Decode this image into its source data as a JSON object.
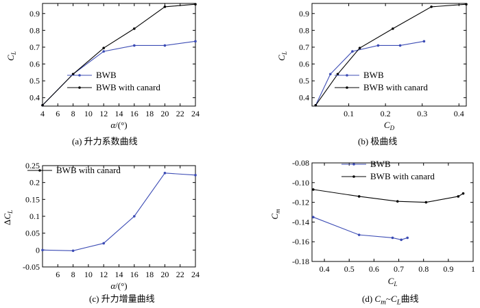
{
  "colors": {
    "bwb": "#3b4bb4",
    "canard": "#000000",
    "axis": "#000000"
  },
  "chart_data": [
    {
      "id": "a",
      "type": "line",
      "caption": "(a)  升力系数曲线",
      "xlabel": "α/(°)",
      "ylabel": "C_L",
      "xlim": [
        4,
        24
      ],
      "ylim": [
        0.35,
        0.96
      ],
      "xticks": [
        4,
        6,
        8,
        10,
        12,
        14,
        16,
        18,
        20,
        22,
        24
      ],
      "xtick_labels": [
        "4",
        "6",
        "8",
        "10",
        "12",
        "14",
        "16",
        "18",
        "20",
        "22",
        "24"
      ],
      "yticks": [
        0.4,
        0.5,
        0.6,
        0.7,
        0.8,
        0.9
      ],
      "ytick_labels": [
        "0.4",
        "0.5",
        "0.6",
        "0.7",
        "0.8",
        "0.9"
      ],
      "legend_position": "lower-right",
      "series": [
        {
          "name": "BWB",
          "color_key": "bwb",
          "points": [
            [
              4,
              0.355
            ],
            [
              8,
              0.54
            ],
            [
              12,
              0.675
            ],
            [
              16,
              0.71
            ],
            [
              20,
              0.71
            ],
            [
              24,
              0.735
            ]
          ]
        },
        {
          "name": "BWB with canard",
          "color_key": "canard",
          "points": [
            [
              4,
              0.355
            ],
            [
              8,
              0.54
            ],
            [
              12,
              0.695
            ],
            [
              16,
              0.81
            ],
            [
              20,
              0.94
            ],
            [
              24,
              0.955
            ]
          ]
        }
      ]
    },
    {
      "id": "b",
      "type": "line",
      "caption": "(b)  极曲线",
      "xlabel": "C_D",
      "ylabel": "C_L",
      "xlim": [
        0.0,
        0.42
      ],
      "ylim": [
        0.35,
        0.96
      ],
      "xticks": [
        0.1,
        0.2,
        0.3,
        0.4
      ],
      "xtick_labels": [
        "0.1",
        "0.2",
        "0.3",
        "0.4"
      ],
      "yticks": [
        0.4,
        0.5,
        0.6,
        0.7,
        0.8,
        0.9
      ],
      "ytick_labels": [
        "0.4",
        "0.5",
        "0.6",
        "0.7",
        "0.8",
        "0.9"
      ],
      "legend_position": "lower-right",
      "series": [
        {
          "name": "BWB",
          "color_key": "bwb",
          "points": [
            [
              0.01,
              0.355
            ],
            [
              0.05,
              0.54
            ],
            [
              0.11,
              0.675
            ],
            [
              0.18,
              0.71
            ],
            [
              0.24,
              0.71
            ],
            [
              0.305,
              0.735
            ]
          ]
        },
        {
          "name": "BWB with canard",
          "color_key": "canard",
          "points": [
            [
              0.01,
              0.355
            ],
            [
              0.07,
              0.54
            ],
            [
              0.13,
              0.695
            ],
            [
              0.22,
              0.81
            ],
            [
              0.325,
              0.94
            ],
            [
              0.42,
              0.955
            ]
          ]
        }
      ]
    },
    {
      "id": "c",
      "type": "line",
      "caption": "(c)  升力增量曲线",
      "xlabel": "α/(°)",
      "ylabel": "ΔC_L",
      "xlim": [
        4,
        24
      ],
      "ylim": [
        -0.05,
        0.25
      ],
      "xticks": [
        6,
        8,
        10,
        12,
        14,
        16,
        18,
        20,
        22,
        24
      ],
      "xtick_labels": [
        "6",
        "8",
        "10",
        "12",
        "14",
        "16",
        "18",
        "20",
        "22",
        "24"
      ],
      "yticks": [
        -0.05,
        0,
        0.05,
        0.1,
        0.15,
        0.2,
        0.25
      ],
      "ytick_labels": [
        "-0.05",
        "0",
        "0.05",
        "0.1",
        "0.15",
        "0.2",
        "0.25"
      ],
      "legend_position": "top-left",
      "legend_marker_color_key": "canard",
      "series": [
        {
          "name": "BWB with canard",
          "color_key": "bwb",
          "points": [
            [
              4,
              0.0
            ],
            [
              8,
              -0.002
            ],
            [
              12,
              0.02
            ],
            [
              16,
              0.1
            ],
            [
              20,
              0.228
            ],
            [
              24,
              0.222
            ]
          ]
        }
      ]
    },
    {
      "id": "d",
      "type": "line",
      "caption": "(d)  C_m~C_L曲线",
      "xlabel": "C_L",
      "ylabel": "C_m",
      "xlim": [
        0.35,
        1.0
      ],
      "ylim": [
        -0.18,
        -0.08
      ],
      "xticks": [
        0.4,
        0.5,
        0.6,
        0.7,
        0.8,
        0.9,
        1
      ],
      "xtick_labels": [
        "0.4",
        "0.5",
        "0.6",
        "0.7",
        "0.8",
        "0.9",
        "1"
      ],
      "yticks": [
        -0.08,
        -0.1,
        -0.12,
        -0.14,
        -0.16,
        -0.18
      ],
      "ytick_labels": [
        "-0.08",
        "-0.10",
        "-0.12",
        "-0.14",
        "-0.16",
        "-0.18"
      ],
      "legend_position": "top-right",
      "series": [
        {
          "name": "BWB",
          "color_key": "bwb",
          "points": [
            [
              0.355,
              -0.135
            ],
            [
              0.54,
              -0.153
            ],
            [
              0.675,
              -0.156
            ],
            [
              0.71,
              -0.158
            ],
            [
              0.735,
              -0.156
            ]
          ]
        },
        {
          "name": "BWB with canard",
          "color_key": "canard",
          "points": [
            [
              0.355,
              -0.107
            ],
            [
              0.54,
              -0.114
            ],
            [
              0.695,
              -0.119
            ],
            [
              0.81,
              -0.12
            ],
            [
              0.94,
              -0.114
            ],
            [
              0.96,
              -0.111
            ]
          ]
        }
      ]
    }
  ]
}
